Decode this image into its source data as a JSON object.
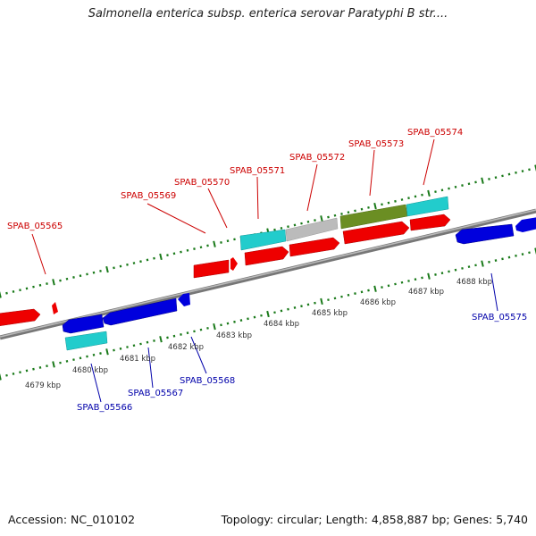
{
  "title": "Salmonella enterica subsp. enterica serovar Paratyphi B str....",
  "footer": {
    "accession": "Accession: NC_010102",
    "summary": "Topology: circular; Length: 4,858,887 bp; Genes: 5,740"
  },
  "colors": {
    "forward_label": "#cc0000",
    "reverse_label": "#0000aa",
    "tick": "#1a7a1a",
    "backbone": "#8c8c8c",
    "gene_red": "#ee0000",
    "gene_blue": "#0000dd",
    "gene_cyan": "#22cccc",
    "gene_gray": "#bbbbbb",
    "gene_olive": "#6b8e23"
  },
  "scale_labels": [
    "4679 kbp",
    "4680 kbp",
    "4681 kbp",
    "4682 kbp",
    "4683 kbp",
    "4684 kbp",
    "4685 kbp",
    "4686 kbp",
    "4687 kbp",
    "4688 kbp"
  ],
  "gene_labels": {
    "top": [
      "SPAB_05565",
      "SPAB_05569",
      "SPAB_05570",
      "SPAB_05571",
      "SPAB_05572",
      "SPAB_05573",
      "SPAB_05574"
    ],
    "bottom": [
      "SPAB_05566",
      "SPAB_05567",
      "SPAB_05568",
      "SPAB_05575"
    ]
  }
}
